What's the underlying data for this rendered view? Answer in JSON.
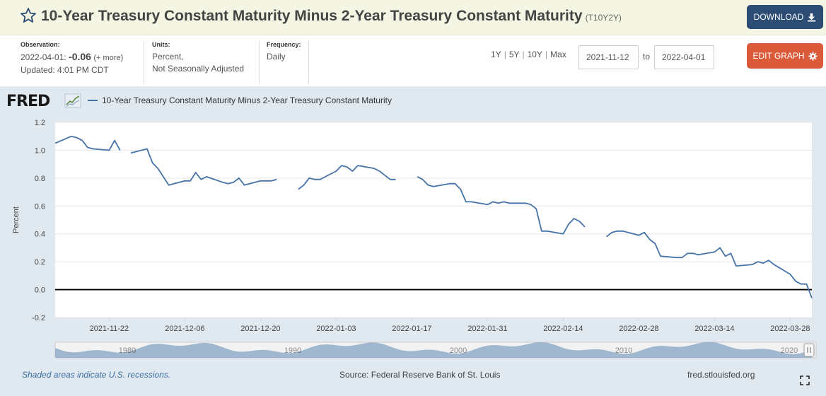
{
  "header": {
    "title": "10-Year Treasury Constant Maturity Minus 2-Year Treasury Constant Maturity",
    "series_id": "(T10Y2Y)",
    "download_label": "DOWNLOAD",
    "star_icon": "star-outline-icon",
    "download_icon": "download-icon",
    "background": "#f5f5e4",
    "download_color": "#2c4c74"
  },
  "observation": {
    "label": "Observation:",
    "date": "2022-04-01:",
    "value": "-0.06",
    "more": "(+ more)",
    "updated": "Updated: 4:01 PM CDT"
  },
  "units": {
    "label": "Units:",
    "line1": "Percent,",
    "line2": "Not Seasonally Adjusted"
  },
  "frequency": {
    "label": "Frequency:",
    "value": "Daily"
  },
  "ranges": [
    "1Y",
    "5Y",
    "10Y",
    "Max"
  ],
  "date_range": {
    "from": "2021-11-12",
    "to_label": "to",
    "to": "2022-04-01"
  },
  "edit_graph_label": "EDIT GRAPH",
  "edit_icon": "gear-icon",
  "edit_color": "#db5a3a",
  "graph": {
    "logo": "FRED",
    "logo_icon": "fred-sparkline-icon",
    "legend": "10-Year Treasury Constant Maturity Minus 2-Year Treasury Constant Maturity",
    "background": "#e1e9f0",
    "line_color": "#4572a7"
  },
  "chart_data": {
    "type": "line",
    "series": [
      {
        "name": "10-Year Treasury Constant Maturity Minus 2-Year Treasury Constant Maturity",
        "segments": [
          [
            [
              "2021-11-12",
              1.05
            ],
            [
              "2021-11-15",
              1.1
            ],
            [
              "2021-11-16",
              1.09
            ],
            [
              "2021-11-17",
              1.07
            ],
            [
              "2021-11-18",
              1.02
            ],
            [
              "2021-11-19",
              1.01
            ],
            [
              "2021-11-22",
              1.0
            ],
            [
              "2021-11-23",
              1.07
            ],
            [
              "2021-11-24",
              1.0
            ]
          ],
          [
            [
              "2021-11-26",
              0.98
            ],
            [
              "2021-11-29",
              1.01
            ],
            [
              "2021-11-30",
              0.91
            ],
            [
              "2021-12-01",
              0.87
            ],
            [
              "2021-12-02",
              0.81
            ],
            [
              "2021-12-03",
              0.75
            ],
            [
              "2021-12-06",
              0.78
            ],
            [
              "2021-12-07",
              0.78
            ],
            [
              "2021-12-08",
              0.84
            ],
            [
              "2021-12-09",
              0.79
            ],
            [
              "2021-12-10",
              0.81
            ],
            [
              "2021-12-13",
              0.77
            ],
            [
              "2021-12-14",
              0.76
            ],
            [
              "2021-12-15",
              0.77
            ],
            [
              "2021-12-16",
              0.8
            ],
            [
              "2021-12-17",
              0.75
            ],
            [
              "2021-12-20",
              0.78
            ],
            [
              "2021-12-21",
              0.78
            ],
            [
              "2021-12-22",
              0.78
            ],
            [
              "2021-12-23",
              0.79
            ]
          ],
          [
            [
              "2021-12-27",
              0.72
            ],
            [
              "2021-12-28",
              0.75
            ],
            [
              "2021-12-29",
              0.8
            ],
            [
              "2021-12-30",
              0.79
            ],
            [
              "2021-12-31",
              0.79
            ],
            [
              "2022-01-03",
              0.85
            ],
            [
              "2022-01-04",
              0.89
            ],
            [
              "2022-01-05",
              0.88
            ],
            [
              "2022-01-06",
              0.85
            ],
            [
              "2022-01-07",
              0.89
            ],
            [
              "2022-01-10",
              0.87
            ],
            [
              "2022-01-11",
              0.85
            ],
            [
              "2022-01-12",
              0.82
            ],
            [
              "2022-01-13",
              0.79
            ],
            [
              "2022-01-14",
              0.79
            ]
          ],
          [
            [
              "2022-01-18",
              0.81
            ],
            [
              "2022-01-19",
              0.79
            ],
            [
              "2022-01-20",
              0.75
            ],
            [
              "2022-01-21",
              0.74
            ],
            [
              "2022-01-24",
              0.76
            ],
            [
              "2022-01-25",
              0.76
            ],
            [
              "2022-01-26",
              0.72
            ],
            [
              "2022-01-27",
              0.63
            ],
            [
              "2022-01-28",
              0.63
            ],
            [
              "2022-01-31",
              0.61
            ],
            [
              "2022-02-01",
              0.63
            ],
            [
              "2022-02-02",
              0.62
            ],
            [
              "2022-02-03",
              0.63
            ],
            [
              "2022-02-04",
              0.62
            ],
            [
              "2022-02-07",
              0.62
            ],
            [
              "2022-02-08",
              0.61
            ],
            [
              "2022-02-09",
              0.58
            ],
            [
              "2022-02-10",
              0.42
            ],
            [
              "2022-02-11",
              0.42
            ],
            [
              "2022-02-14",
              0.4
            ],
            [
              "2022-02-15",
              0.47
            ],
            [
              "2022-02-16",
              0.51
            ],
            [
              "2022-02-17",
              0.49
            ],
            [
              "2022-02-18",
              0.45
            ]
          ],
          [
            [
              "2022-02-22",
              0.38
            ],
            [
              "2022-02-23",
              0.41
            ],
            [
              "2022-02-24",
              0.42
            ],
            [
              "2022-02-25",
              0.42
            ],
            [
              "2022-02-28",
              0.39
            ],
            [
              "2022-03-01",
              0.41
            ],
            [
              "2022-03-02",
              0.36
            ],
            [
              "2022-03-03",
              0.33
            ],
            [
              "2022-03-04",
              0.24
            ],
            [
              "2022-03-07",
              0.23
            ],
            [
              "2022-03-08",
              0.23
            ],
            [
              "2022-03-09",
              0.26
            ],
            [
              "2022-03-10",
              0.26
            ],
            [
              "2022-03-11",
              0.25
            ],
            [
              "2022-03-14",
              0.27
            ],
            [
              "2022-03-15",
              0.3
            ],
            [
              "2022-03-16",
              0.24
            ],
            [
              "2022-03-17",
              0.26
            ],
            [
              "2022-03-18",
              0.17
            ],
            [
              "2022-03-21",
              0.18
            ],
            [
              "2022-03-22",
              0.2
            ],
            [
              "2022-03-23",
              0.19
            ],
            [
              "2022-03-24",
              0.21
            ],
            [
              "2022-03-25",
              0.18
            ],
            [
              "2022-03-28",
              0.11
            ],
            [
              "2022-03-29",
              0.06
            ],
            [
              "2022-03-30",
              0.04
            ],
            [
              "2022-03-31",
              0.04
            ],
            [
              "2022-04-01",
              -0.06
            ]
          ]
        ]
      }
    ],
    "xlim": [
      "2021-11-12",
      "2022-04-01"
    ],
    "x_ticks": [
      "2021-11-22",
      "2021-12-06",
      "2021-12-20",
      "2022-01-03",
      "2022-01-17",
      "2022-01-31",
      "2022-02-14",
      "2022-02-28",
      "2022-03-14",
      "2022-03-28"
    ],
    "ylim": [
      -0.2,
      1.2
    ],
    "y_ticks": [
      1.2,
      1.0,
      0.8,
      0.6,
      0.4,
      0.2,
      0.0,
      -0.2
    ],
    "y_tick_labels": [
      "1.2",
      "1.0",
      "0.8",
      "0.6",
      "0.4",
      "0.2",
      "0.0",
      "-0.2"
    ],
    "ylabel": "Percent",
    "zero_line": true,
    "grid": "horizontal",
    "navigator_labels": [
      "1980",
      "1990",
      "2000",
      "2010",
      "2020"
    ]
  },
  "footer": {
    "recessions_note": "Shaded areas indicate U.S. recessions.",
    "source": "Source: Federal Reserve Bank of St. Louis",
    "site": "fred.stlouisfed.org",
    "fullscreen_icon": "fullscreen-icon"
  }
}
